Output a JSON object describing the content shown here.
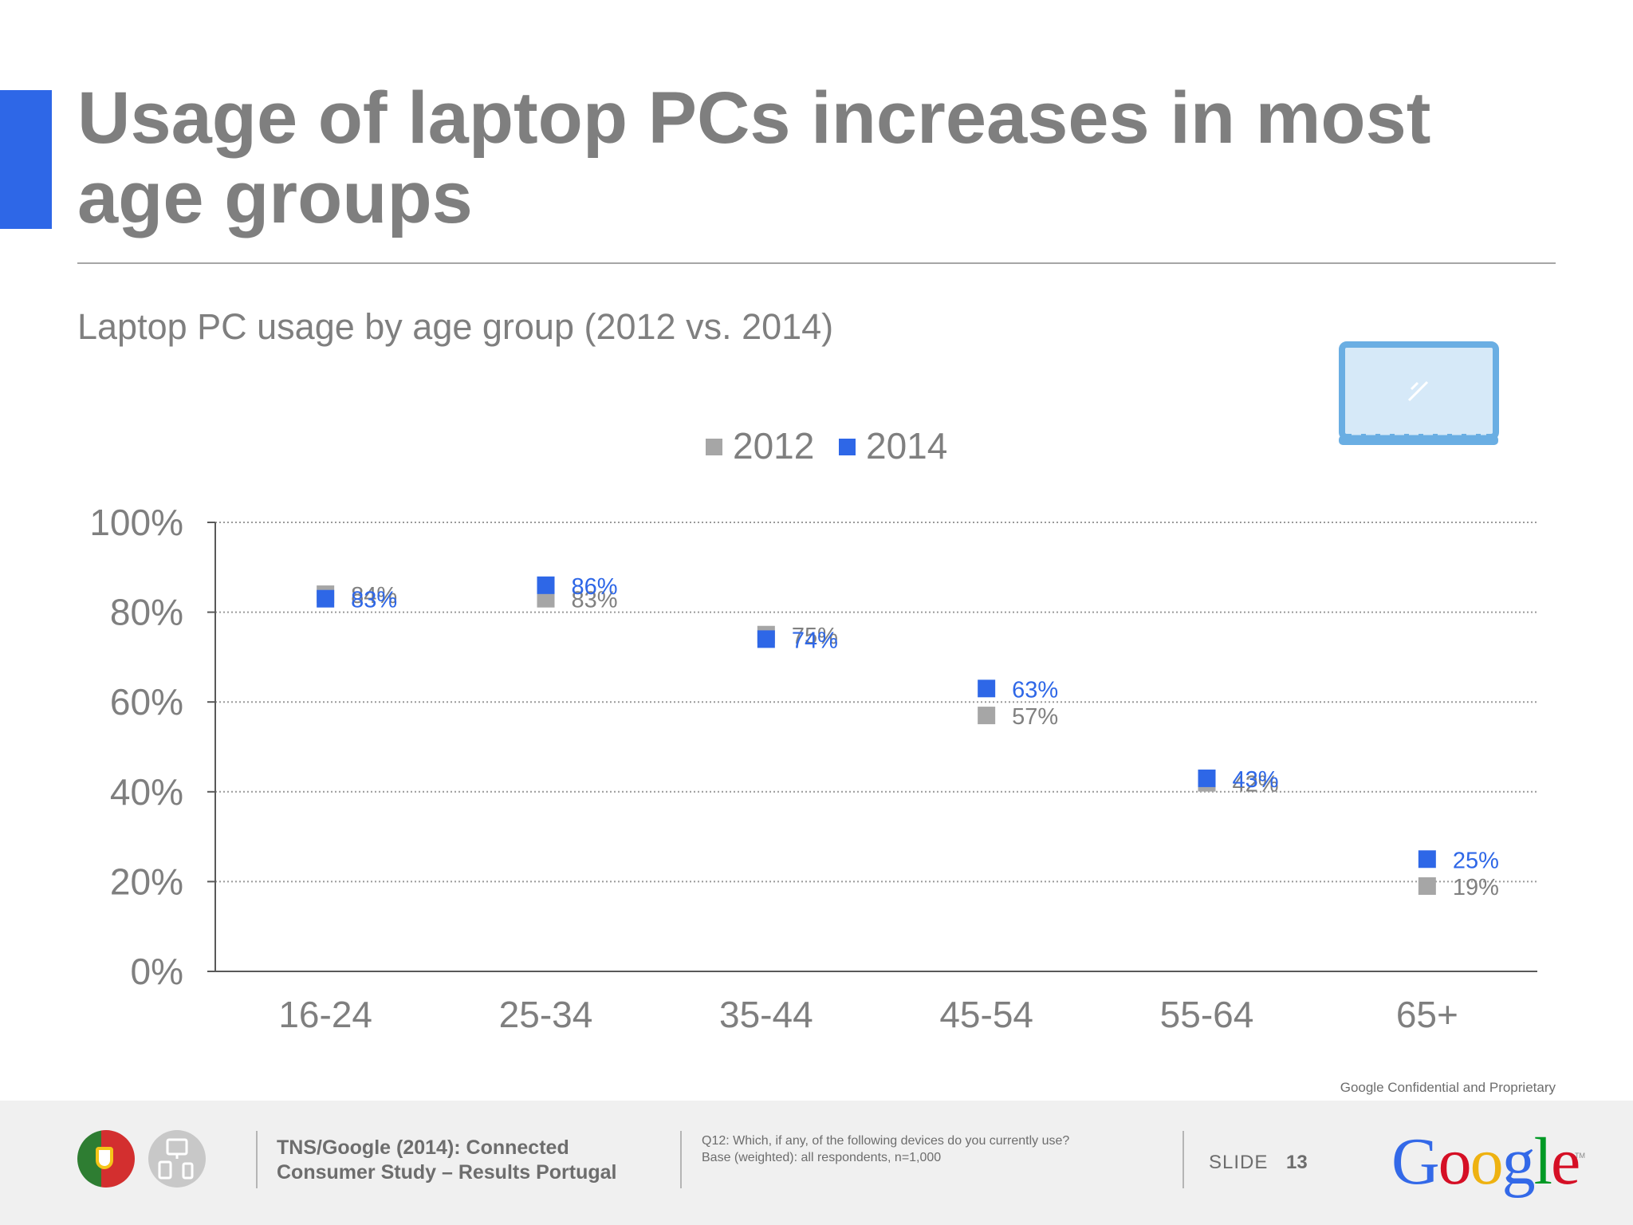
{
  "title": "Usage of laptop PCs increases in most age groups",
  "subtitle": "Laptop PC usage by age group (2012 vs. 2014)",
  "confidential": "Google Confidential and Proprietary",
  "footer": {
    "source": "TNS/Google (2014): Connected Consumer Study – Results Portugal",
    "question_line1": "Q12: Which, if any, of the following devices do you currently use?",
    "question_line2": "Base (weighted): all respondents, n=1,000",
    "slide_label": "SLIDE",
    "slide_number": "13",
    "logo_text": "Google",
    "logo_colors": [
      "#3369e8",
      "#d50f25",
      "#eeb211",
      "#3369e8",
      "#009925",
      "#d50f25"
    ]
  },
  "icons": {
    "laptop": "laptop-icon",
    "country": "portugal-flag-icon",
    "devices": "devices-icon"
  },
  "colors": {
    "accent": "#2e67e7",
    "series_2012": "#a6a6a6",
    "series_2014": "#2e67e7",
    "text_gray": "#7f7f7f",
    "laptop": "#6aaee3"
  },
  "chart_data": {
    "type": "scatter",
    "categories": [
      "16-24",
      "25-34",
      "35-44",
      "45-54",
      "55-64",
      "65+"
    ],
    "series": [
      {
        "name": "2012",
        "values": [
          84,
          83,
          75,
          57,
          42,
          19
        ],
        "labels": [
          "84%",
          "83%",
          "75%",
          "57%",
          "42%",
          "19%"
        ],
        "color": "#a6a6a6"
      },
      {
        "name": "2014",
        "values": [
          83,
          86,
          74,
          63,
          43,
          25
        ],
        "labels": [
          "83%",
          "86%",
          "74%",
          "63%",
          "43%",
          "25%"
        ],
        "color": "#2e67e7"
      }
    ],
    "yticks": [
      "0%",
      "20%",
      "40%",
      "60%",
      "80%",
      "100%"
    ],
    "ylim": [
      0,
      100
    ],
    "grid": true,
    "legend": "top-center"
  }
}
